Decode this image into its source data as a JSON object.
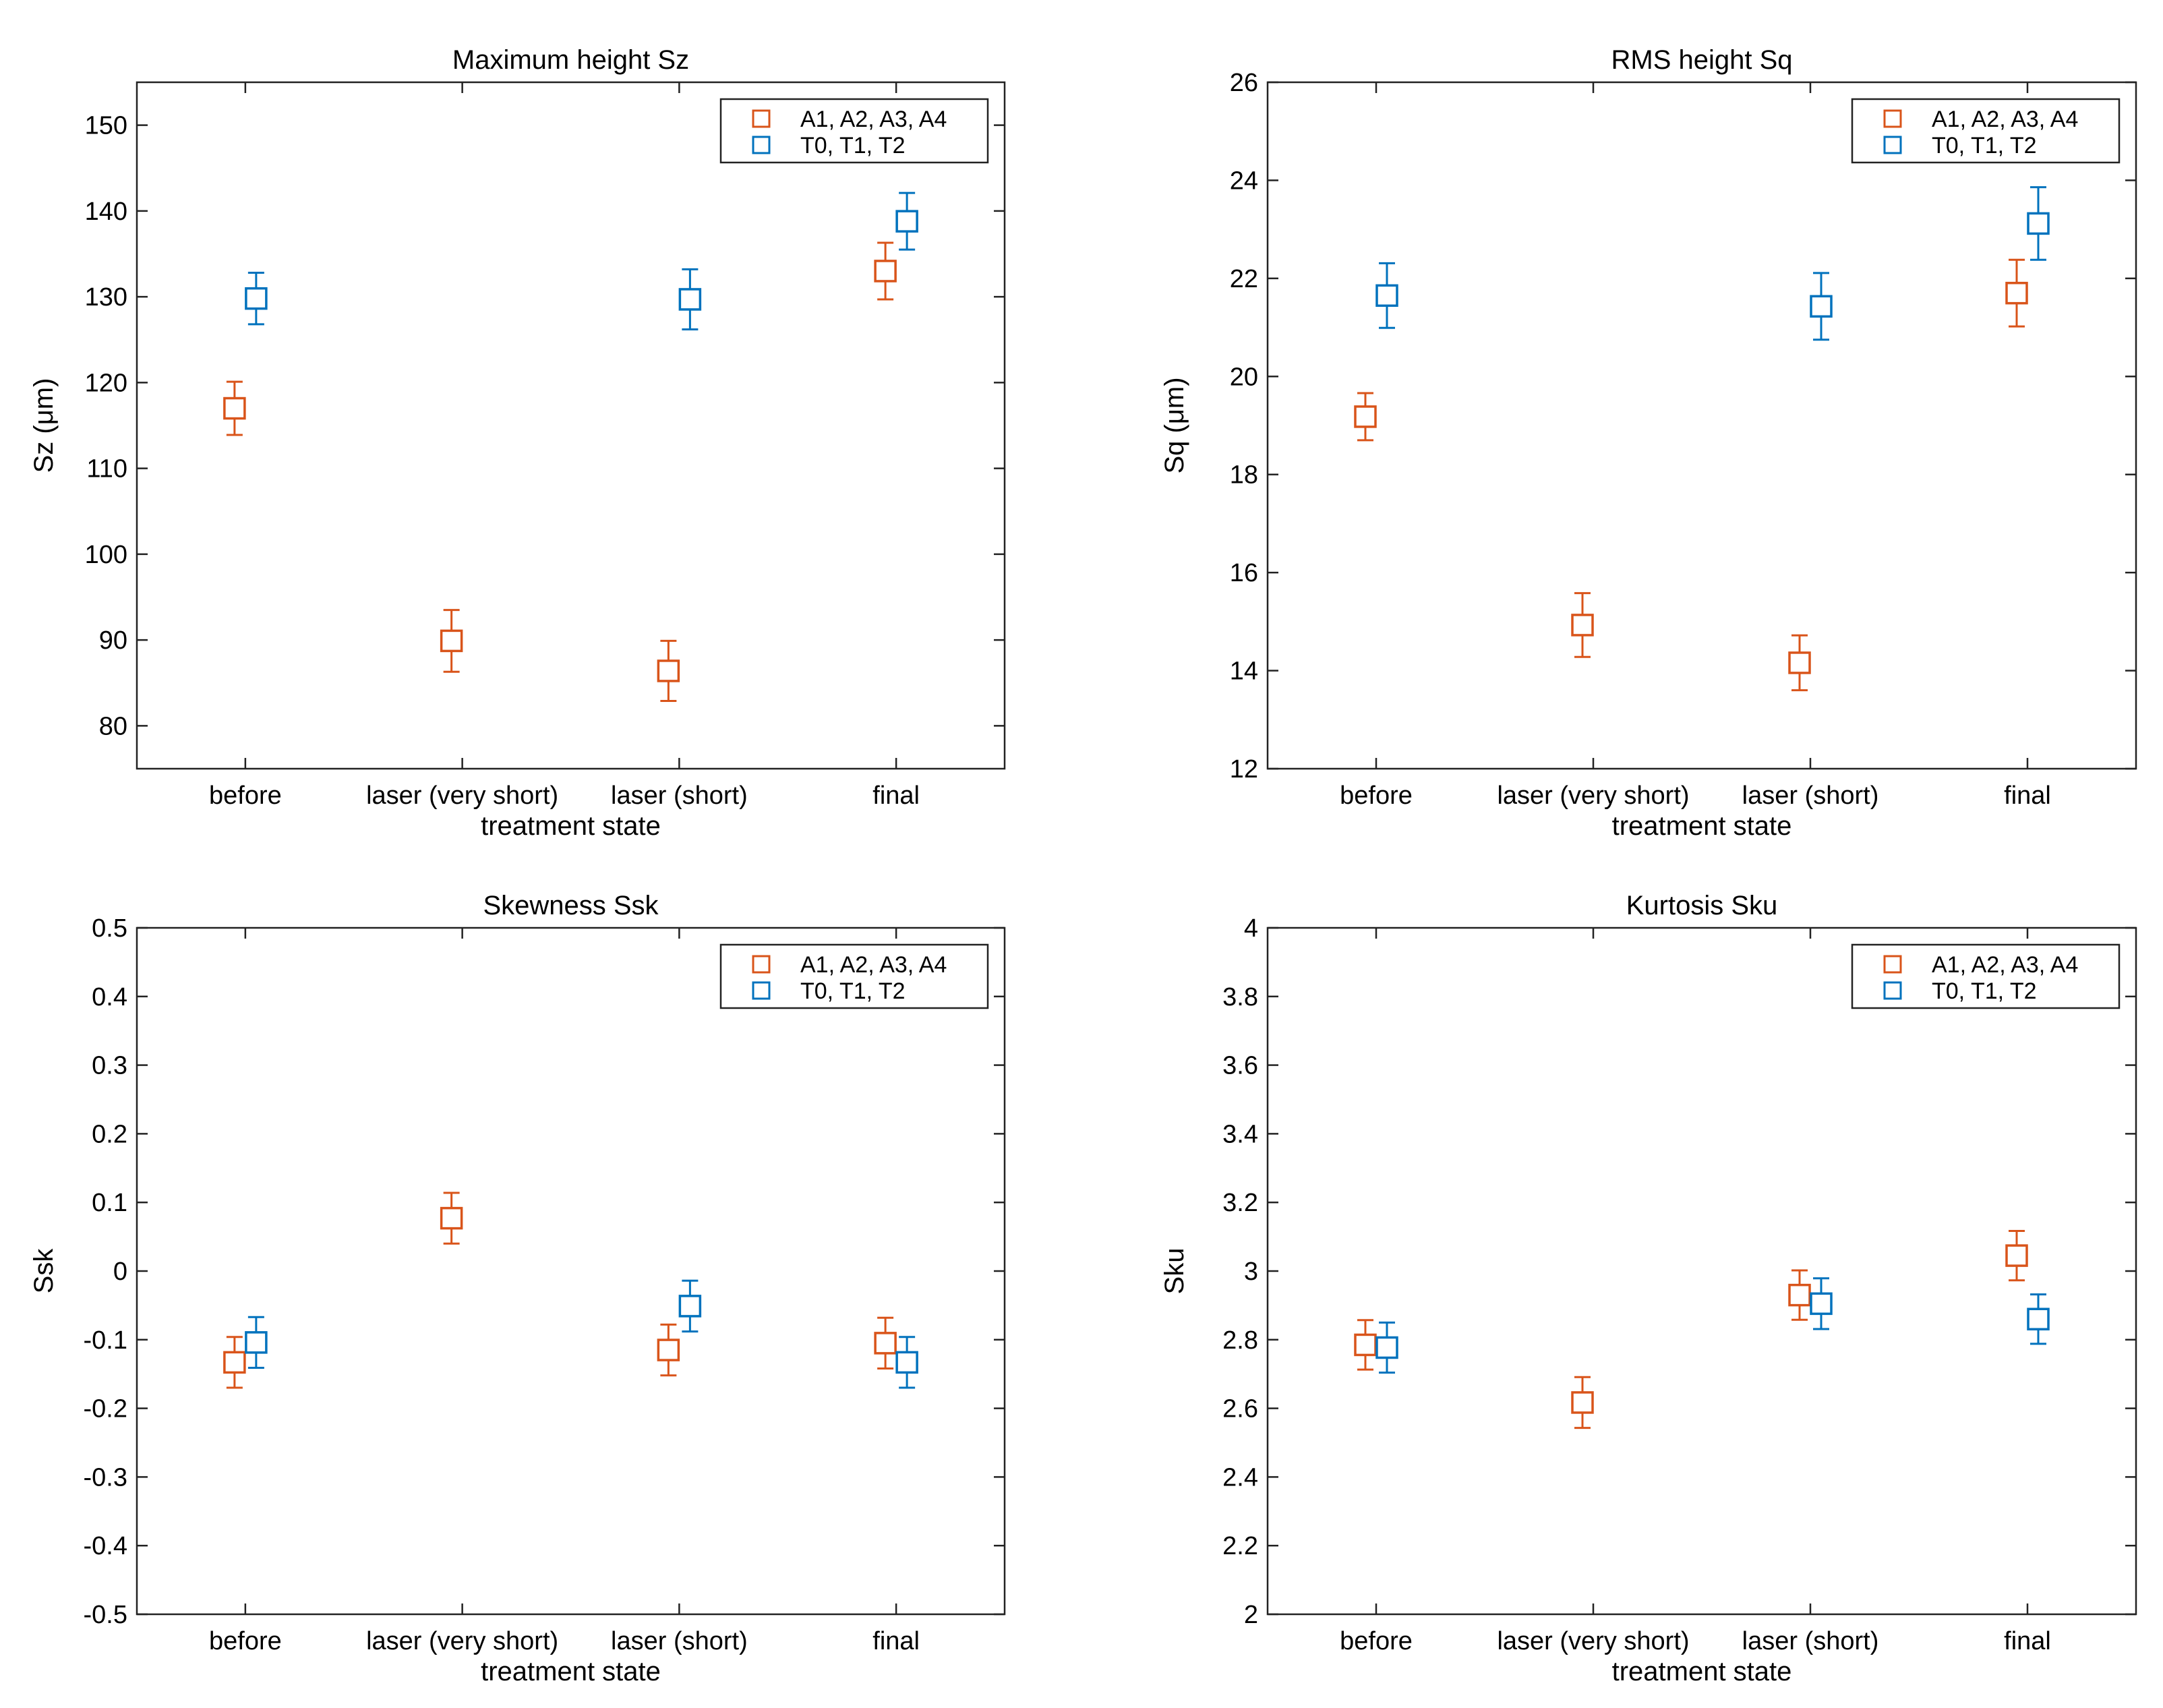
{
  "figure": {
    "series_colors": {
      "A": "#d9541a",
      "T": "#0072bd"
    }
  },
  "chart_data": [
    {
      "type": "scatter",
      "title": "Maximum height Sz",
      "xlabel": "treatment state",
      "ylabel": "Sz (μm)",
      "categories": [
        "before",
        "laser (very short)",
        "laser (short)",
        "final"
      ],
      "ylim": [
        75,
        155
      ],
      "yticks": [
        80,
        90,
        100,
        110,
        120,
        130,
        140,
        150
      ],
      "ytick_labels": [
        "80",
        "90",
        "100",
        "110",
        "120",
        "130",
        "140",
        "150"
      ],
      "legend_position": "top-right",
      "series": [
        {
          "name": "A1, A2, A3, A4",
          "color": "#d9541a",
          "values": [
            117,
            89.9,
            86.4,
            133
          ],
          "errors": [
            3.1,
            3.6,
            3.5,
            3.3
          ]
        },
        {
          "name": "T0, T1, T2",
          "color": "#0072bd",
          "values": [
            129.8,
            null,
            129.7,
            138.8
          ],
          "errors": [
            3.0,
            null,
            3.5,
            3.3
          ]
        }
      ]
    },
    {
      "type": "scatter",
      "title": "RMS height Sq",
      "xlabel": "treatment state",
      "ylabel": "Sq (μm)",
      "categories": [
        "before",
        "laser (very short)",
        "laser (short)",
        "final"
      ],
      "ylim": [
        12,
        26
      ],
      "yticks": [
        12,
        14,
        16,
        18,
        20,
        22,
        24,
        26
      ],
      "ytick_labels": [
        "12",
        "14",
        "16",
        "18",
        "20",
        "22",
        "24",
        "26"
      ],
      "legend_position": "top-right",
      "series": [
        {
          "name": "A1, A2, A3, A4",
          "color": "#d9541a",
          "values": [
            19.18,
            14.93,
            14.16,
            21.7
          ],
          "errors": [
            0.48,
            0.65,
            0.56,
            0.68
          ]
        },
        {
          "name": "T0, T1, T2",
          "color": "#0072bd",
          "values": [
            21.65,
            null,
            21.43,
            23.12
          ],
          "errors": [
            0.66,
            null,
            0.68,
            0.74
          ]
        }
      ]
    },
    {
      "type": "scatter",
      "title": "Skewness Ssk",
      "xlabel": "treatment state",
      "ylabel": "Ssk",
      "categories": [
        "before",
        "laser (very short)",
        "laser (short)",
        "final"
      ],
      "ylim": [
        -0.5,
        0.5
      ],
      "yticks": [
        -0.5,
        -0.4,
        -0.3,
        -0.2,
        -0.1,
        0,
        0.1,
        0.2,
        0.3,
        0.4,
        0.5
      ],
      "ytick_labels": [
        "-0.5",
        "-0.4",
        "-0.3",
        "-0.2",
        "-0.1",
        "0",
        "0.1",
        "0.2",
        "0.3",
        "0.4",
        "0.5"
      ],
      "legend_position": "top-right",
      "series": [
        {
          "name": "A1, A2, A3, A4",
          "color": "#d9541a",
          "values": [
            -0.133,
            0.077,
            -0.115,
            -0.105
          ],
          "errors": [
            0.037,
            0.037,
            0.037,
            0.037
          ]
        },
        {
          "name": "T0, T1, T2",
          "color": "#0072bd",
          "values": [
            -0.104,
            null,
            -0.051,
            -0.133
          ],
          "errors": [
            0.037,
            null,
            0.037,
            0.037
          ]
        }
      ]
    },
    {
      "type": "scatter",
      "title": "Kurtosis Sku",
      "xlabel": "treatment state",
      "ylabel": "Sku",
      "categories": [
        "before",
        "laser (very short)",
        "laser (short)",
        "final"
      ],
      "ylim": [
        2,
        4
      ],
      "yticks": [
        2,
        2.2,
        2.4,
        2.6,
        2.8,
        3,
        3.2,
        3.4,
        3.6,
        3.8,
        4
      ],
      "ytick_labels": [
        "2",
        "2.2",
        "2.4",
        "2.6",
        "2.8",
        "3",
        "3.2",
        "3.4",
        "3.6",
        "3.8",
        "4"
      ],
      "legend_position": "top-right",
      "series": [
        {
          "name": "A1, A2, A3, A4",
          "color": "#d9541a",
          "values": [
            2.785,
            2.617,
            2.93,
            3.045
          ],
          "errors": [
            0.072,
            0.074,
            0.072,
            0.072
          ]
        },
        {
          "name": "T0, T1, T2",
          "color": "#0072bd",
          "values": [
            2.777,
            null,
            2.905,
            2.86
          ],
          "errors": [
            0.073,
            null,
            0.074,
            0.072
          ]
        }
      ]
    }
  ]
}
